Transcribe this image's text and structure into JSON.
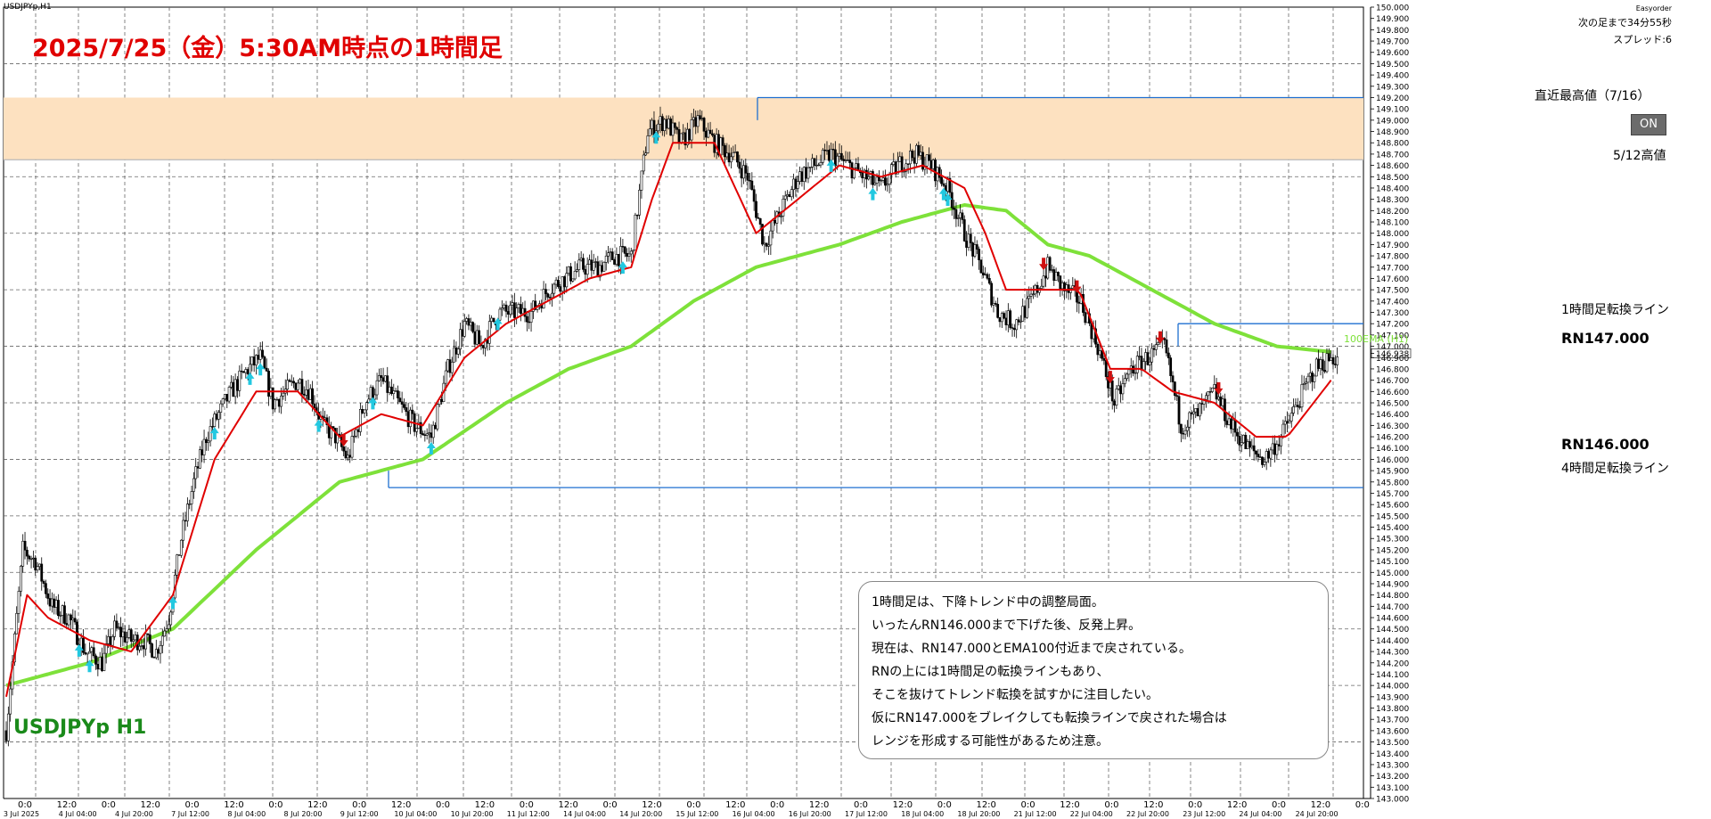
{
  "window": {
    "symbol_tab": "USDJPYp,H1",
    "broker": "Easyorder",
    "next_bar": "次の足まで34分55秒",
    "spread": "スプレッド:6",
    "on_button": "ON"
  },
  "headline": "2025/7/25（金）5:30AM時点の1時間足",
  "symbol_label": "USDJPYp H1",
  "lines": {
    "recent_high": "直近最高値（7/16）",
    "may12_high": "5/12高値",
    "h1_turn": "1時間足転換ライン",
    "h4_turn": "4時間足転換ライン",
    "rn147": "RN147.000",
    "rn146": "RN146.000",
    "ema_label": "100EMA (H1)"
  },
  "comment": [
    "1時間足は、下降トレンド中の調整局面。",
    "いったんRN146.000まで下げた後、反発上昇。",
    "現在は、RN147.000とEMA100付近まで戻されている。",
    "RNの上には1時間足の転換ラインもあり、",
    "そこを抜けてトレンド転換を試すかに注目したい。",
    "仮にRN147.000をブレイクしても転換ラインで戻された場合は",
    "レンジを形成する可能性があるため注意。"
  ],
  "colors": {
    "candle": "#000000",
    "ema_fast": "#e00000",
    "ema_slow": "#7ee13a",
    "line": "#1e6fd0",
    "zone": "#fde1c0",
    "up_arrow": "#22c8e0",
    "down_arrow": "#d01010"
  },
  "chart_data": {
    "type": "candlestick",
    "symbol": "USDJPYp",
    "timeframe": "H1",
    "y_axis": {
      "min": 143.0,
      "max": 150.0,
      "step": 0.1,
      "ticks": [
        "150.000",
        "149.900",
        "149.800",
        "149.700",
        "149.600",
        "149.500",
        "149.400",
        "149.300",
        "149.200",
        "149.100",
        "149.000",
        "148.900",
        "148.800",
        "148.700",
        "148.600",
        "148.500",
        "148.400",
        "148.300",
        "148.200",
        "148.100",
        "148.000",
        "147.900",
        "147.800",
        "147.700",
        "147.600",
        "147.500",
        "147.400",
        "147.300",
        "147.200",
        "147.100",
        "147.000",
        "146.938",
        "146.900",
        "146.800",
        "146.700",
        "146.600",
        "146.500",
        "146.400",
        "146.300",
        "146.200",
        "146.100",
        "146.000",
        "145.900",
        "145.800",
        "145.700",
        "145.600",
        "145.500",
        "145.400",
        "145.300",
        "145.200",
        "145.100",
        "145.000",
        "144.900",
        "144.800",
        "144.700",
        "144.600",
        "144.500",
        "144.400",
        "144.300",
        "144.200",
        "144.100",
        "144.000",
        "143.900",
        "143.800",
        "143.700",
        "143.600",
        "143.500",
        "143.400",
        "143.300",
        "143.200",
        "143.100",
        "143.000"
      ],
      "current_price": 146.938
    },
    "x_axis": {
      "upper_ticks": [
        "0:0",
        "12:0",
        "0:0",
        "12:0",
        "0:0",
        "12:0",
        "0:0",
        "12:0",
        "0:0",
        "12:0",
        "0:0",
        "12:0",
        "0:0",
        "12:0",
        "0:0",
        "12:0",
        "0:0",
        "12:0",
        "0:0",
        "12:0",
        "0:0",
        "12:0",
        "0:0",
        "12:0",
        "0:0",
        "12:0",
        "0:0",
        "12:0",
        "0:0",
        "12:0",
        "0:0",
        "12:0",
        "0:0"
      ],
      "lower_ticks": [
        "3 Jul 2025",
        "4 Jul 04:00",
        "4 Jul 20:00",
        "7 Jul 12:00",
        "8 Jul 04:00",
        "8 Jul 20:00",
        "9 Jul 12:00",
        "10 Jul 04:00",
        "10 Jul 20:00",
        "11 Jul 12:00",
        "14 Jul 04:00",
        "14 Jul 20:00",
        "15 Jul 12:00",
        "16 Jul 04:00",
        "16 Jul 20:00",
        "17 Jul 12:00",
        "18 Jul 04:00",
        "18 Jul 20:00",
        "21 Jul 12:00",
        "22 Jul 04:00",
        "22 Jul 20:00",
        "23 Jul 12:00",
        "24 Jul 04:00",
        "24 Jul 20:00"
      ]
    },
    "horizontal_lines": [
      {
        "name": "直近最高値（7/16）",
        "price": 149.2
      },
      {
        "name": "5/12高値",
        "price": 148.65
      },
      {
        "name": "1時間足転換ライン",
        "price": 147.2
      },
      {
        "name": "RN147.000",
        "price": 147.0
      },
      {
        "name": "RN146.000",
        "price": 146.0
      },
      {
        "name": "4時間足転換ライン",
        "price": 145.75
      }
    ],
    "zone": {
      "from": 148.65,
      "to": 149.2
    },
    "price_path": [
      [
        0,
        143.6
      ],
      [
        8,
        145.2
      ],
      [
        14,
        145.1
      ],
      [
        22,
        144.7
      ],
      [
        30,
        144.6
      ],
      [
        38,
        144.3
      ],
      [
        46,
        144.2
      ],
      [
        52,
        144.5
      ],
      [
        60,
        144.4
      ],
      [
        66,
        144.4
      ],
      [
        72,
        144.3
      ],
      [
        78,
        144.6
      ],
      [
        84,
        145.3
      ],
      [
        90,
        145.8
      ],
      [
        96,
        146.2
      ],
      [
        102,
        146.4
      ],
      [
        108,
        146.6
      ],
      [
        116,
        146.8
      ],
      [
        122,
        146.9
      ],
      [
        128,
        146.5
      ],
      [
        134,
        146.6
      ],
      [
        140,
        146.7
      ],
      [
        146,
        146.6
      ],
      [
        152,
        146.3
      ],
      [
        158,
        146.2
      ],
      [
        164,
        146.0
      ],
      [
        172,
        146.5
      ],
      [
        180,
        146.7
      ],
      [
        188,
        146.5
      ],
      [
        196,
        146.3
      ],
      [
        204,
        146.2
      ],
      [
        212,
        146.8
      ],
      [
        220,
        147.2
      ],
      [
        228,
        147.0
      ],
      [
        236,
        147.3
      ],
      [
        244,
        147.3
      ],
      [
        252,
        147.3
      ],
      [
        260,
        147.5
      ],
      [
        268,
        147.6
      ],
      [
        276,
        147.7
      ],
      [
        284,
        147.7
      ],
      [
        292,
        147.8
      ],
      [
        300,
        147.8
      ],
      [
        308,
        148.9
      ],
      [
        316,
        149.0
      ],
      [
        324,
        148.8
      ],
      [
        332,
        149.0
      ],
      [
        340,
        148.8
      ],
      [
        348,
        148.7
      ],
      [
        356,
        148.5
      ],
      [
        364,
        147.9
      ],
      [
        372,
        148.2
      ],
      [
        380,
        148.5
      ],
      [
        388,
        148.6
      ],
      [
        396,
        148.7
      ],
      [
        404,
        148.6
      ],
      [
        412,
        148.5
      ],
      [
        420,
        148.4
      ],
      [
        428,
        148.6
      ],
      [
        436,
        148.7
      ],
      [
        444,
        148.6
      ],
      [
        452,
        148.4
      ],
      [
        460,
        148.0
      ],
      [
        468,
        147.7
      ],
      [
        476,
        147.3
      ],
      [
        484,
        147.2
      ],
      [
        492,
        147.4
      ],
      [
        500,
        147.7
      ],
      [
        508,
        147.5
      ],
      [
        516,
        147.4
      ],
      [
        524,
        147.0
      ],
      [
        532,
        146.5
      ],
      [
        540,
        146.8
      ],
      [
        548,
        146.9
      ],
      [
        556,
        147.0
      ],
      [
        564,
        146.3
      ],
      [
        572,
        146.4
      ],
      [
        580,
        146.6
      ],
      [
        588,
        146.3
      ],
      [
        596,
        146.1
      ],
      [
        604,
        146.0
      ],
      [
        612,
        146.2
      ],
      [
        620,
        146.5
      ],
      [
        628,
        146.8
      ],
      [
        636,
        146.9
      ]
    ],
    "ema_slow_path": [
      [
        0,
        144.0
      ],
      [
        40,
        144.2
      ],
      [
        80,
        144.5
      ],
      [
        120,
        145.2
      ],
      [
        160,
        145.8
      ],
      [
        200,
        146.0
      ],
      [
        240,
        146.5
      ],
      [
        270,
        146.8
      ],
      [
        300,
        147.0
      ],
      [
        330,
        147.4
      ],
      [
        360,
        147.7
      ],
      [
        400,
        147.9
      ],
      [
        430,
        148.1
      ],
      [
        460,
        148.25
      ],
      [
        480,
        148.2
      ],
      [
        500,
        147.9
      ],
      [
        520,
        147.8
      ],
      [
        550,
        147.5
      ],
      [
        580,
        147.2
      ],
      [
        610,
        147.0
      ],
      [
        636,
        146.95
      ]
    ],
    "ema_fast_path": [
      [
        0,
        143.9
      ],
      [
        10,
        144.8
      ],
      [
        20,
        144.6
      ],
      [
        40,
        144.4
      ],
      [
        60,
        144.3
      ],
      [
        80,
        144.8
      ],
      [
        100,
        146.0
      ],
      [
        120,
        146.6
      ],
      [
        140,
        146.6
      ],
      [
        160,
        146.2
      ],
      [
        180,
        146.4
      ],
      [
        200,
        146.3
      ],
      [
        220,
        146.9
      ],
      [
        240,
        147.2
      ],
      [
        260,
        147.4
      ],
      [
        280,
        147.6
      ],
      [
        300,
        147.7
      ],
      [
        310,
        148.3
      ],
      [
        320,
        148.8
      ],
      [
        340,
        148.8
      ],
      [
        360,
        148.0
      ],
      [
        380,
        148.3
      ],
      [
        400,
        148.6
      ],
      [
        420,
        148.5
      ],
      [
        440,
        148.6
      ],
      [
        460,
        148.4
      ],
      [
        470,
        148.0
      ],
      [
        480,
        147.5
      ],
      [
        500,
        147.5
      ],
      [
        515,
        147.5
      ],
      [
        530,
        146.8
      ],
      [
        545,
        146.8
      ],
      [
        560,
        146.6
      ],
      [
        580,
        146.5
      ],
      [
        600,
        146.2
      ],
      [
        615,
        146.2
      ],
      [
        636,
        146.7
      ]
    ],
    "signals": [
      {
        "i": 40,
        "dir": "up"
      },
      {
        "i": 35,
        "dir": "up"
      },
      {
        "i": 80,
        "dir": "up"
      },
      {
        "i": 100,
        "dir": "up"
      },
      {
        "i": 117,
        "dir": "up"
      },
      {
        "i": 122,
        "dir": "up"
      },
      {
        "i": 150,
        "dir": "up"
      },
      {
        "i": 176,
        "dir": "up"
      },
      {
        "i": 204,
        "dir": "up"
      },
      {
        "i": 236,
        "dir": "up"
      },
      {
        "i": 296,
        "dir": "up"
      },
      {
        "i": 312,
        "dir": "up"
      },
      {
        "i": 396,
        "dir": "up"
      },
      {
        "i": 416,
        "dir": "up"
      },
      {
        "i": 450,
        "dir": "up"
      },
      {
        "i": 452,
        "dir": "up"
      },
      {
        "i": 162,
        "dir": "down"
      },
      {
        "i": 498,
        "dir": "down"
      },
      {
        "i": 514,
        "dir": "down"
      },
      {
        "i": 530,
        "dir": "down"
      },
      {
        "i": 554,
        "dir": "down"
      },
      {
        "i": 582,
        "dir": "down"
      }
    ]
  }
}
